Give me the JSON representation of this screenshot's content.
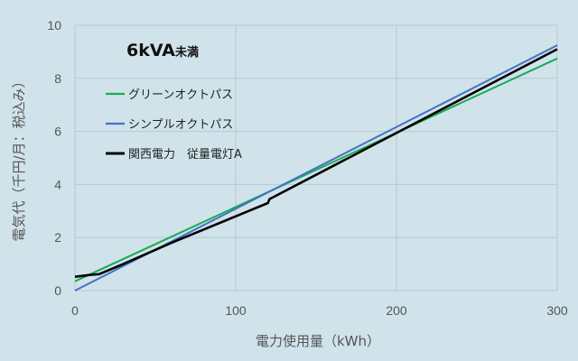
{
  "chart_data": {
    "type": "line",
    "title": "6kVA",
    "title_suffix": "未満",
    "xlabel": "電力使用量（kWh）",
    "ylabel": "電気代（千円/月：税込み）",
    "xlim": [
      0,
      300
    ],
    "ylim": [
      0,
      10
    ],
    "xticks": [
      0,
      100,
      200,
      300
    ],
    "yticks": [
      0,
      2,
      4,
      6,
      8,
      10
    ],
    "grid": true,
    "legend_position": "top-left",
    "series": [
      {
        "name": "グリーンオクトパス",
        "color": "#1aaa55",
        "x": [
          0,
          300
        ],
        "y": [
          0.35,
          8.75
        ]
      },
      {
        "name": "シンプルオクトパス",
        "color": "#4472c4",
        "x": [
          0,
          300
        ],
        "y": [
          0.0,
          9.25
        ]
      },
      {
        "name": "関西電力　従量電灯A",
        "color": "#000000",
        "x": [
          0,
          10,
          15,
          30,
          60,
          100,
          120,
          121,
          300
        ],
        "y": [
          0.52,
          0.6,
          0.62,
          1.0,
          1.8,
          2.8,
          3.3,
          3.45,
          9.1
        ]
      }
    ]
  }
}
